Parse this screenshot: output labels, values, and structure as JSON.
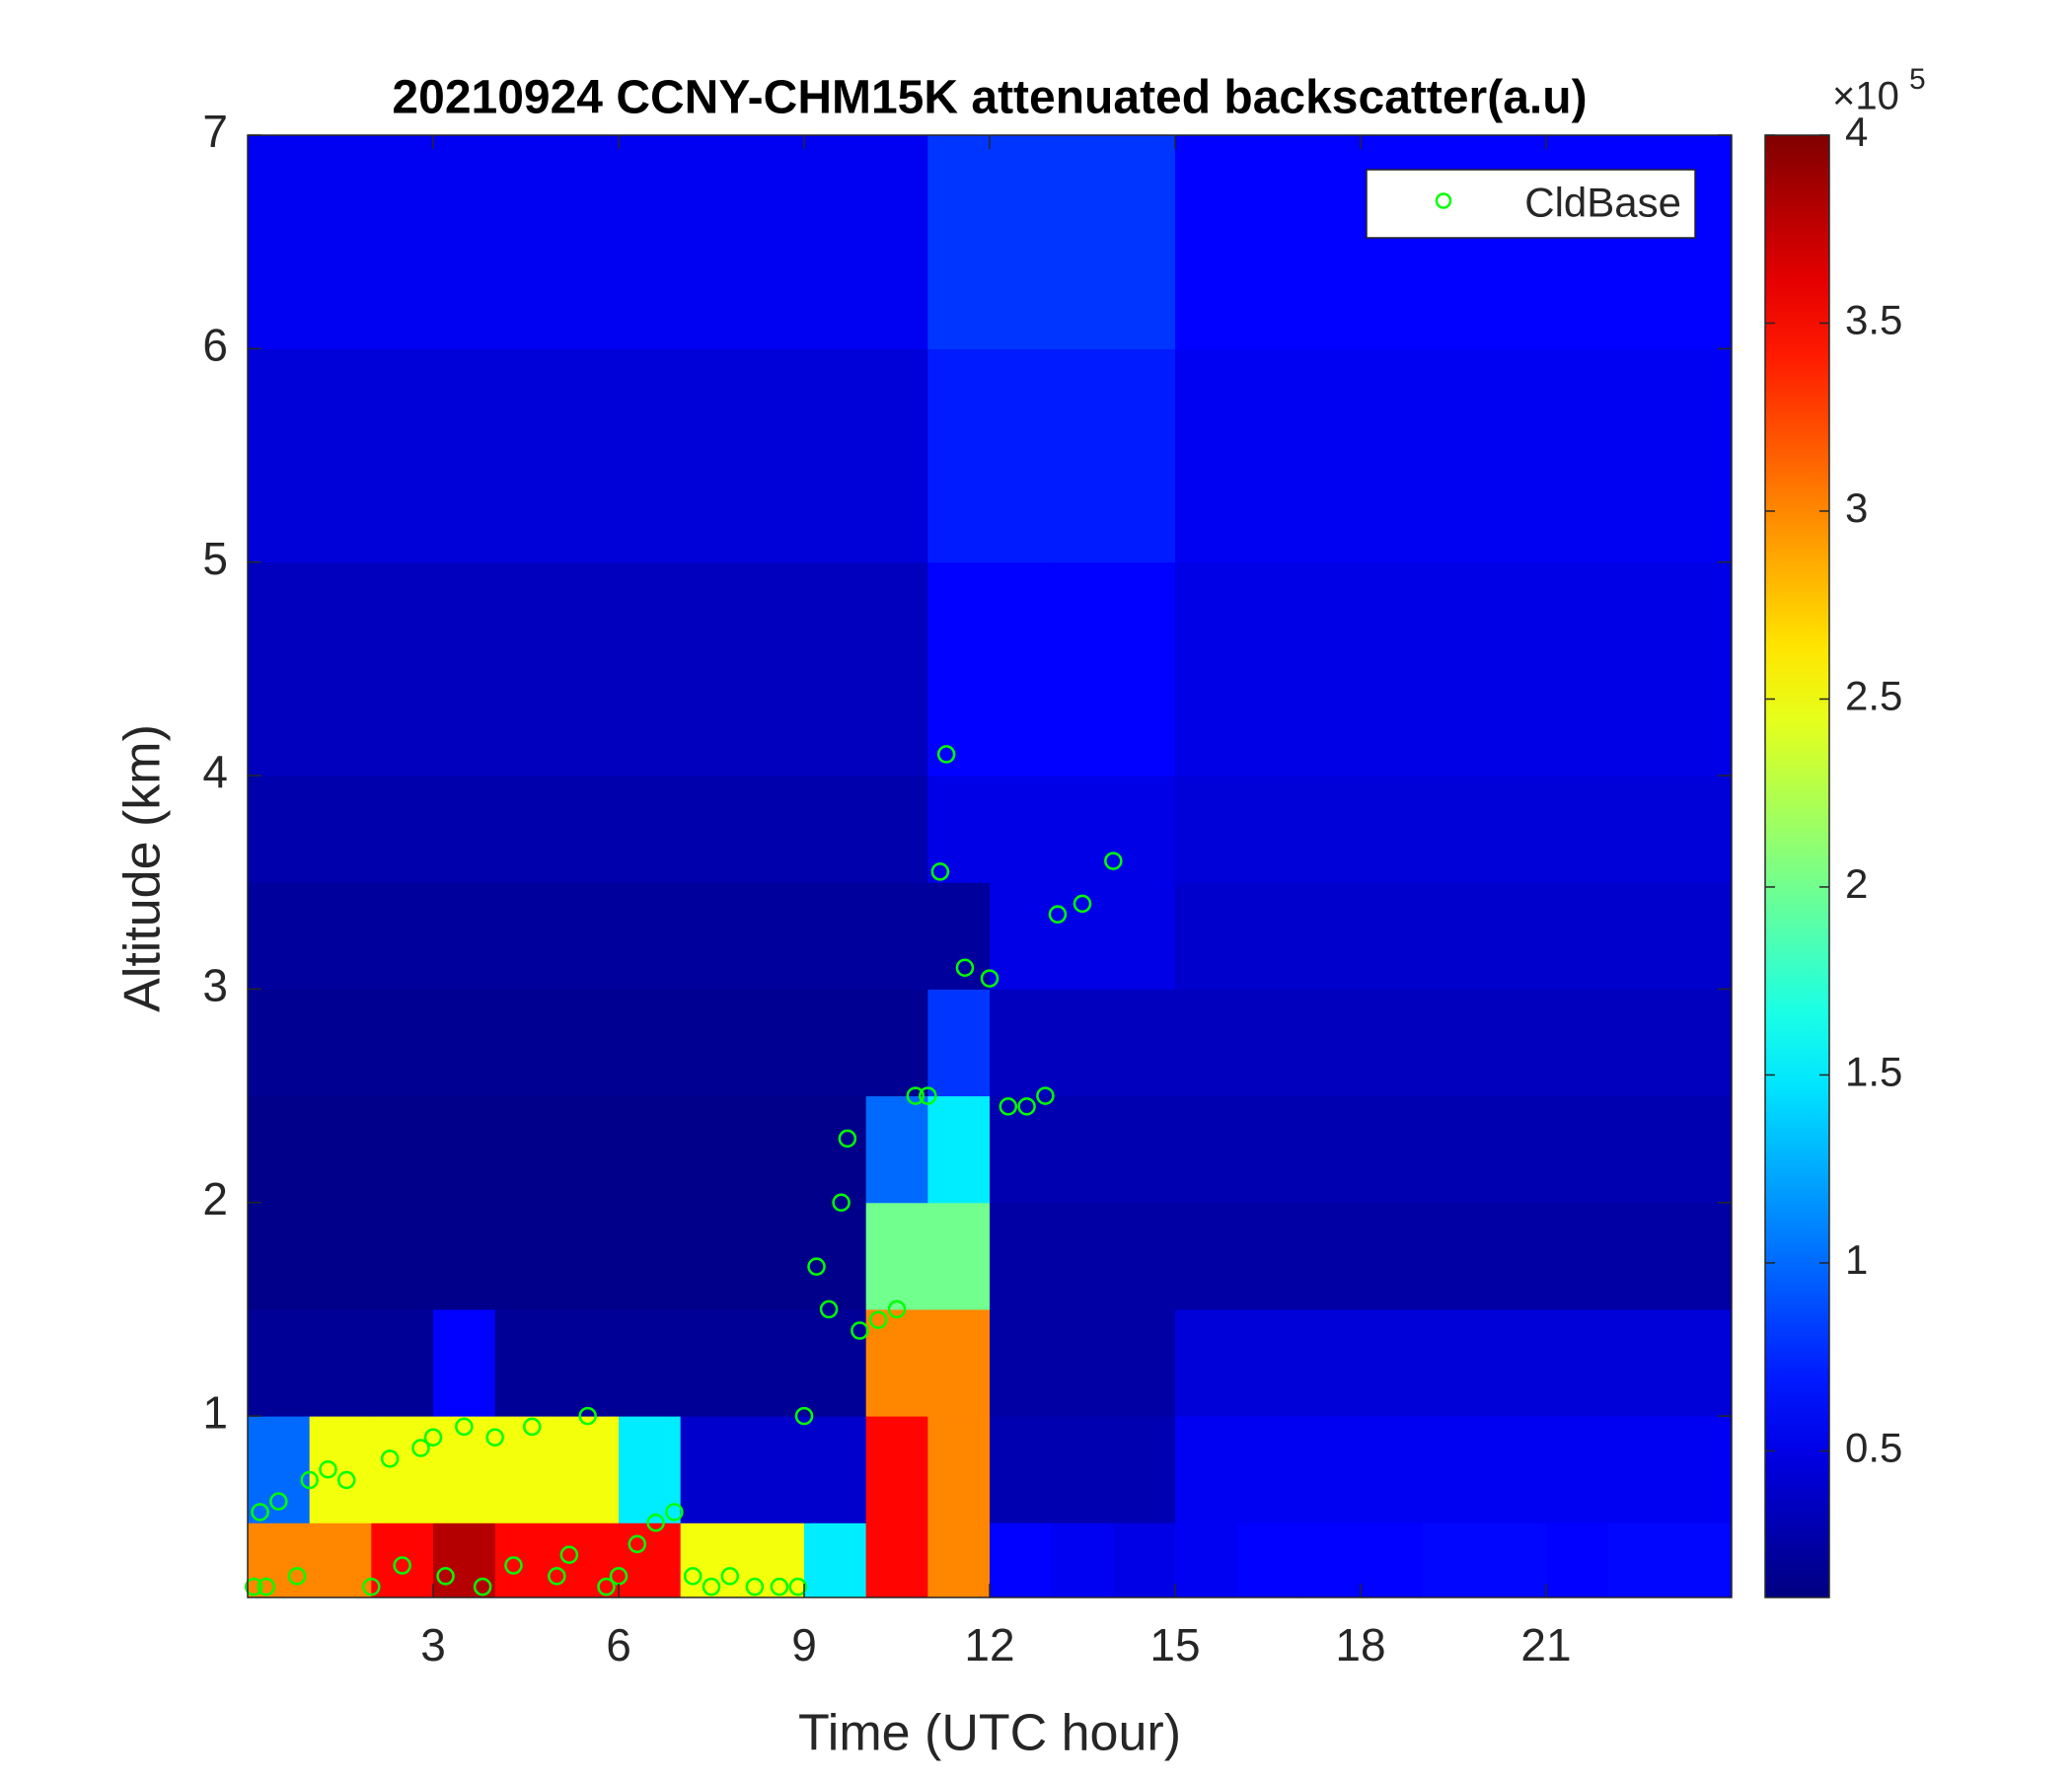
{
  "chart_data": {
    "type": "heatmap",
    "title": "20210924 CCNY-CHM15K attenuated backscatter(a.u)",
    "xlabel": "Time (UTC hour)",
    "ylabel": "Altitude (km)",
    "xlim": [
      0,
      24
    ],
    "ylim": [
      0.15,
      7
    ],
    "xticks": [
      3,
      6,
      9,
      12,
      15,
      18,
      21
    ],
    "yticks": [
      1,
      2,
      3,
      4,
      5,
      6,
      7
    ],
    "colormap": "jet",
    "clim": [
      11000,
      400000
    ],
    "colorbar_ticks": [
      {
        "value": 50000,
        "label": "0.5"
      },
      {
        "value": 100000,
        "label": "1"
      },
      {
        "value": 150000,
        "label": "1.5"
      },
      {
        "value": 200000,
        "label": "2"
      },
      {
        "value": 250000,
        "label": "2.5"
      },
      {
        "value": 300000,
        "label": "3"
      },
      {
        "value": 350000,
        "label": "3.5"
      },
      {
        "value": 400000,
        "label": "4"
      }
    ],
    "colorbar_scale": {
      "base": "×10",
      "exponent": "5"
    },
    "x_edges": [
      0,
      1,
      2,
      3,
      4,
      5,
      6,
      7,
      8,
      9,
      10,
      11,
      12,
      13,
      14,
      15,
      16,
      17,
      18,
      19,
      20,
      21,
      22,
      23,
      24
    ],
    "y_edges": [
      0.15,
      0.5,
      1,
      1.5,
      2,
      2.5,
      3,
      3.5,
      4,
      5,
      6,
      7
    ],
    "z": [
      [
        300000,
        300000,
        350000,
        380000,
        350000,
        350000,
        350000,
        250000,
        250000,
        150000,
        350000,
        300000,
        60000,
        55000,
        50000,
        55000,
        60000,
        60000,
        60000,
        62000,
        62000,
        60000,
        62000,
        62000
      ],
      [
        100000,
        250000,
        250000,
        250000,
        250000,
        250000,
        150000,
        40000,
        40000,
        40000,
        350000,
        300000,
        30000,
        30000,
        30000,
        55000,
        55000,
        55000,
        55000,
        55000,
        55000,
        55000,
        55000,
        55000
      ],
      [
        20000,
        20000,
        20000,
        60000,
        20000,
        20000,
        20000,
        20000,
        20000,
        20000,
        300000,
        300000,
        25000,
        25000,
        25000,
        45000,
        45000,
        45000,
        45000,
        45000,
        45000,
        45000,
        45000,
        45000
      ],
      [
        15000,
        15000,
        15000,
        15000,
        15000,
        15000,
        15000,
        15000,
        15000,
        15000,
        200000,
        200000,
        25000,
        25000,
        25000,
        25000,
        25000,
        25000,
        25000,
        25000,
        25000,
        25000,
        25000,
        25000
      ],
      [
        15000,
        15000,
        15000,
        15000,
        15000,
        15000,
        15000,
        15000,
        15000,
        15000,
        100000,
        150000,
        30000,
        30000,
        30000,
        30000,
        30000,
        30000,
        30000,
        30000,
        30000,
        30000,
        30000,
        30000
      ],
      [
        18000,
        18000,
        18000,
        18000,
        18000,
        18000,
        18000,
        18000,
        18000,
        18000,
        18000,
        80000,
        35000,
        35000,
        35000,
        35000,
        35000,
        35000,
        35000,
        35000,
        35000,
        35000,
        35000,
        35000
      ],
      [
        22000,
        22000,
        22000,
        22000,
        22000,
        22000,
        22000,
        22000,
        22000,
        22000,
        22000,
        22000,
        50000,
        50000,
        50000,
        40000,
        40000,
        40000,
        40000,
        40000,
        40000,
        40000,
        40000,
        40000
      ],
      [
        28000,
        28000,
        28000,
        28000,
        28000,
        28000,
        28000,
        28000,
        28000,
        28000,
        28000,
        50000,
        50000,
        50000,
        50000,
        45000,
        45000,
        45000,
        45000,
        45000,
        45000,
        45000,
        45000,
        45000
      ],
      [
        35000,
        35000,
        35000,
        35000,
        35000,
        35000,
        35000,
        35000,
        35000,
        35000,
        35000,
        60000,
        60000,
        60000,
        60000,
        50000,
        50000,
        50000,
        50000,
        50000,
        50000,
        50000,
        50000,
        50000
      ],
      [
        45000,
        45000,
        45000,
        45000,
        45000,
        45000,
        45000,
        45000,
        45000,
        45000,
        45000,
        70000,
        70000,
        70000,
        70000,
        55000,
        55000,
        55000,
        55000,
        55000,
        55000,
        55000,
        55000,
        55000
      ],
      [
        55000,
        55000,
        55000,
        55000,
        55000,
        55000,
        55000,
        55000,
        55000,
        55000,
        55000,
        80000,
        80000,
        80000,
        80000,
        60000,
        60000,
        60000,
        60000,
        60000,
        60000,
        60000,
        60000,
        60000
      ]
    ],
    "series": [
      {
        "name": "CldBase",
        "color": "#00ff00",
        "x": [
          0.1,
          0.2,
          0.3,
          0.5,
          0.8,
          1,
          1.3,
          1.6,
          2,
          2.3,
          2.5,
          2.8,
          3,
          3.2,
          3.5,
          3.8,
          4,
          4.3,
          4.6,
          5,
          5.2,
          5.5,
          5.8,
          6,
          6.3,
          6.6,
          6.9,
          7.2,
          7.5,
          7.8,
          8.2,
          8.6,
          8.9,
          9,
          9.2,
          9.4,
          9.6,
          9.7,
          9.9,
          10.2,
          10.5,
          10.8,
          11,
          11.2,
          11.3,
          11.6,
          12,
          12.3,
          12.6,
          12.9,
          13.1,
          13.5,
          14
        ],
        "values": [
          0.2,
          0.55,
          0.2,
          0.6,
          0.25,
          0.7,
          0.75,
          0.7,
          0.2,
          0.8,
          0.3,
          0.85,
          0.9,
          0.25,
          0.95,
          0.2,
          0.9,
          0.3,
          0.95,
          0.25,
          0.35,
          1.0,
          0.2,
          0.25,
          0.4,
          0.5,
          0.55,
          0.25,
          0.2,
          0.25,
          0.2,
          0.2,
          0.2,
          1.0,
          1.7,
          1.5,
          2.0,
          2.3,
          1.4,
          1.45,
          1.5,
          2.5,
          2.5,
          3.55,
          4.1,
          3.1,
          3.05,
          2.45,
          2.45,
          2.5,
          3.35,
          3.4,
          3.6
        ]
      }
    ],
    "legend": "upper right"
  }
}
